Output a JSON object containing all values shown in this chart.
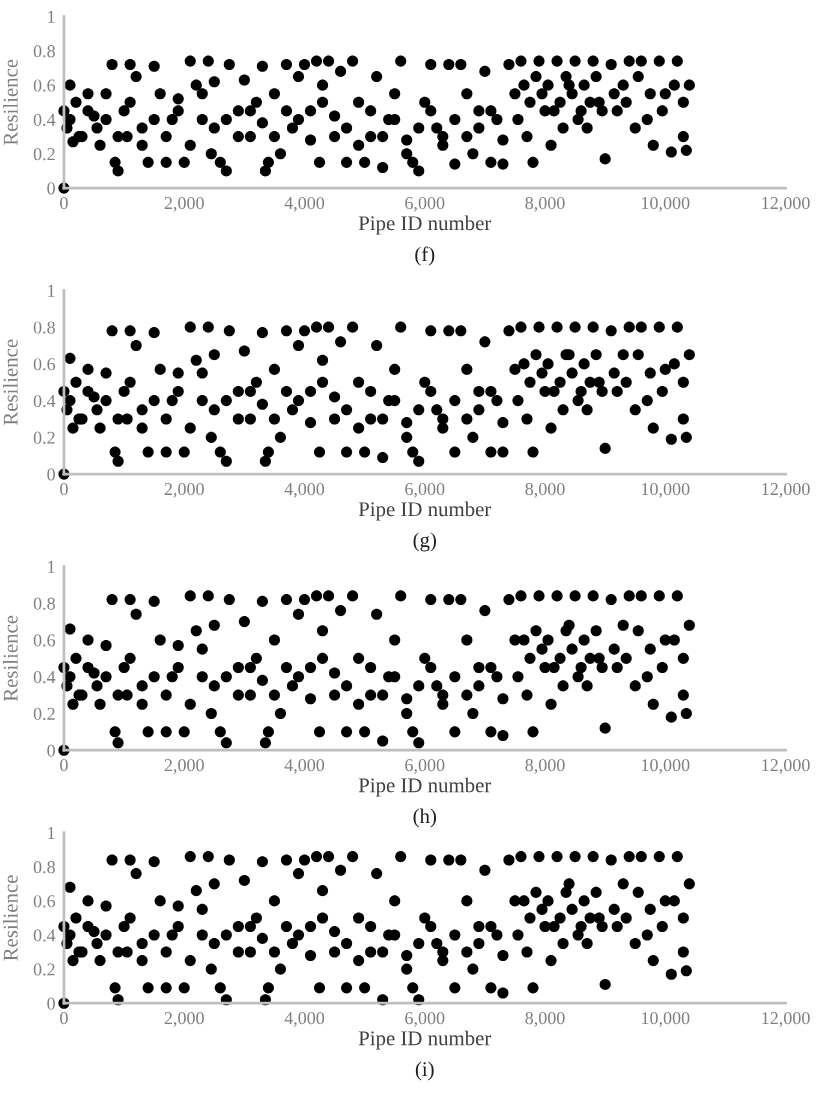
{
  "chart_data": [
    {
      "type": "scatter",
      "title": "(f)",
      "xlabel": "Pipe ID number",
      "ylabel": "Resilience",
      "marker": "circle",
      "grid": false,
      "legend": false,
      "xlim": [
        0,
        12000
      ],
      "xticks": [
        0,
        {
          "value": 2000,
          "label": "2,000"
        },
        {
          "value": 4000,
          "label": "4,000"
        },
        {
          "value": 6000,
          "label": "6,000"
        },
        {
          "value": 8000,
          "label": "8,000"
        },
        {
          "value": 10000,
          "label": "10,000"
        },
        {
          "value": 12000,
          "label": "12,000"
        }
      ],
      "ylim": [
        0,
        1
      ],
      "yticks": [
        0,
        0.2,
        0.4,
        0.6,
        0.8,
        1
      ],
      "series": [
        {
          "color": "#000000",
          "x": [
            0,
            0,
            50,
            100,
            150,
            200,
            300,
            400,
            500,
            600,
            700,
            800,
            850,
            900,
            1000,
            1050,
            1100,
            1200,
            1300,
            1400,
            1500,
            1600,
            1700,
            1800,
            1900,
            2000,
            2100,
            2200,
            2300,
            2400,
            2450,
            2500,
            2600,
            2700,
            2750,
            2900,
            3000,
            3100,
            3200,
            3300,
            3350,
            3400,
            3500,
            3600,
            3700,
            3800,
            3900,
            4000,
            4100,
            4200,
            4250,
            4300,
            4400,
            4500,
            4600,
            4700,
            4800,
            4900,
            5000,
            5100,
            5200,
            5300,
            5400,
            5500,
            5600,
            5700,
            5800,
            5900,
            6000,
            6100,
            6200,
            6300,
            6400,
            6500,
            6600,
            6700,
            6800,
            6900,
            7000,
            7100,
            7200,
            7300,
            7400,
            7500,
            7600,
            7700,
            7800,
            7900,
            8000,
            8100,
            8200,
            8300,
            8400,
            8500,
            8600,
            8700,
            8800,
            8900,
            9000,
            9100,
            9200,
            9300,
            9400,
            9500,
            9600,
            9700,
            9800,
            9900,
            10000,
            10100,
            10200,
            10300,
            10350,
            10400
          ],
          "values": [
            0,
            0.45,
            0.35,
            0.6,
            0.27,
            0.5,
            0.3,
            0.55,
            0.42,
            0.25,
            0.55,
            0.72,
            0.15,
            0.1,
            0.45,
            0.3,
            0.72,
            0.65,
            0.35,
            0.15,
            0.71,
            0.55,
            0.15,
            0.4,
            0.52,
            0.15,
            0.74,
            0.6,
            0.4,
            0.74,
            0.2,
            0.62,
            0.15,
            0.1,
            0.72,
            0.45,
            0.63,
            0.3,
            0.5,
            0.71,
            0.1,
            0.15,
            0.55,
            0.2,
            0.72,
            0.35,
            0.65,
            0.72,
            0.45,
            0.74,
            0.15,
            0.6,
            0.74,
            0.3,
            0.68,
            0.15,
            0.74,
            0.5,
            0.15,
            0.3,
            0.65,
            0.12,
            0.4,
            0.55,
            0.74,
            0.2,
            0.15,
            0.1,
            0.5,
            0.72,
            0.35,
            0.3,
            0.72,
            0.14,
            0.72,
            0.55,
            0.2,
            0.45,
            0.68,
            0.15,
            0.4,
            0.14,
            0.72,
            0.55,
            0.74,
            0.3,
            0.15,
            0.74,
            0.45,
            0.25,
            0.74,
            0.35,
            0.6,
            0.74,
            0.45,
            0.35,
            0.74,
            0.5,
            0.17,
            0.72,
            0.45,
            0.6,
            0.74,
            0.35,
            0.74,
            0.4,
            0.25,
            0.74,
            0.55,
            0.21,
            0.74,
            0.3,
            0.22,
            0.6
          ]
        },
        {
          "color": "#000000",
          "x": [
            100,
            250,
            400,
            550,
            700,
            900,
            1100,
            1300,
            1500,
            1700,
            1900,
            2100,
            2300,
            2500,
            2700,
            2900,
            3100,
            3300,
            3500,
            3700,
            3900,
            4100,
            4300,
            4500,
            4700,
            4900,
            5100,
            5300,
            5500,
            5700,
            5900,
            6100,
            6300,
            6500,
            6700,
            6900,
            7100,
            7300,
            7550,
            7650,
            7750,
            7850,
            7950,
            8050,
            8150,
            8250,
            8350,
            8450,
            8550,
            8650,
            8750,
            8850,
            8950,
            9150,
            9350,
            9550,
            9750,
            9950,
            10150,
            10300
          ],
          "values": [
            0.4,
            0.3,
            0.45,
            0.35,
            0.4,
            0.3,
            0.5,
            0.25,
            0.4,
            0.3,
            0.45,
            0.25,
            0.55,
            0.35,
            0.4,
            0.3,
            0.45,
            0.38,
            0.3,
            0.45,
            0.4,
            0.28,
            0.5,
            0.42,
            0.35,
            0.25,
            0.45,
            0.3,
            0.4,
            0.28,
            0.35,
            0.45,
            0.25,
            0.4,
            0.3,
            0.35,
            0.45,
            0.28,
            0.4,
            0.6,
            0.5,
            0.65,
            0.55,
            0.6,
            0.45,
            0.5,
            0.65,
            0.55,
            0.4,
            0.6,
            0.5,
            0.65,
            0.45,
            0.55,
            0.5,
            0.65,
            0.55,
            0.45,
            0.6,
            0.5
          ]
        }
      ]
    },
    {
      "type": "scatter",
      "title": "(g)",
      "xlabel": "Pipe ID number",
      "ylabel": "Resilience",
      "marker": "circle",
      "grid": false,
      "legend": false,
      "xlim": [
        0,
        12000
      ],
      "xticks": [
        0,
        {
          "value": 2000,
          "label": "2,000"
        },
        {
          "value": 4000,
          "label": "4,000"
        },
        {
          "value": 6000,
          "label": "6,000"
        },
        {
          "value": 8000,
          "label": "8,000"
        },
        {
          "value": 10000,
          "label": "10,000"
        },
        {
          "value": 12000,
          "label": "12,000"
        }
      ],
      "ylim": [
        0,
        1
      ],
      "yticks": [
        0,
        0.2,
        0.4,
        0.6,
        0.8,
        1
      ],
      "series": [
        {
          "color": "#000000",
          "x": [
            0,
            0,
            50,
            100,
            150,
            200,
            300,
            400,
            500,
            600,
            700,
            800,
            850,
            900,
            1000,
            1050,
            1100,
            1200,
            1300,
            1400,
            1500,
            1600,
            1700,
            1800,
            1900,
            2000,
            2100,
            2200,
            2300,
            2400,
            2450,
            2500,
            2600,
            2700,
            2750,
            2900,
            3000,
            3100,
            3200,
            3300,
            3350,
            3400,
            3500,
            3600,
            3700,
            3800,
            3900,
            4000,
            4100,
            4200,
            4250,
            4300,
            4400,
            4500,
            4600,
            4700,
            4800,
            4900,
            5000,
            5100,
            5200,
            5300,
            5400,
            5500,
            5600,
            5700,
            5800,
            5900,
            6000,
            6100,
            6200,
            6300,
            6400,
            6500,
            6600,
            6700,
            6800,
            6900,
            7000,
            7100,
            7200,
            7300,
            7400,
            7500,
            7600,
            7700,
            7800,
            7900,
            8000,
            8100,
            8200,
            8300,
            8400,
            8500,
            8600,
            8700,
            8800,
            8900,
            9000,
            9100,
            9200,
            9300,
            9400,
            9500,
            9600,
            9700,
            9800,
            9900,
            10000,
            10100,
            10200,
            10300,
            10350,
            10400
          ],
          "values": [
            0,
            0.45,
            0.35,
            0.63,
            0.25,
            0.5,
            0.3,
            0.57,
            0.42,
            0.25,
            0.55,
            0.78,
            0.12,
            0.07,
            0.45,
            0.3,
            0.78,
            0.7,
            0.35,
            0.12,
            0.77,
            0.57,
            0.12,
            0.4,
            0.55,
            0.12,
            0.8,
            0.62,
            0.4,
            0.8,
            0.2,
            0.65,
            0.12,
            0.07,
            0.78,
            0.45,
            0.67,
            0.3,
            0.5,
            0.77,
            0.07,
            0.12,
            0.57,
            0.2,
            0.78,
            0.35,
            0.7,
            0.78,
            0.45,
            0.8,
            0.12,
            0.62,
            0.8,
            0.3,
            0.72,
            0.12,
            0.8,
            0.5,
            0.12,
            0.3,
            0.7,
            0.09,
            0.4,
            0.57,
            0.8,
            0.2,
            0.12,
            0.07,
            0.5,
            0.78,
            0.35,
            0.3,
            0.78,
            0.12,
            0.78,
            0.57,
            0.2,
            0.45,
            0.72,
            0.12,
            0.4,
            0.12,
            0.78,
            0.57,
            0.8,
            0.3,
            0.12,
            0.8,
            0.45,
            0.25,
            0.8,
            0.35,
            0.65,
            0.8,
            0.45,
            0.35,
            0.8,
            0.5,
            0.14,
            0.78,
            0.45,
            0.65,
            0.8,
            0.35,
            0.8,
            0.4,
            0.25,
            0.8,
            0.57,
            0.19,
            0.8,
            0.3,
            0.2,
            0.65
          ]
        },
        {
          "color": "#000000",
          "x": [
            100,
            250,
            400,
            550,
            700,
            900,
            1100,
            1300,
            1500,
            1700,
            1900,
            2100,
            2300,
            2500,
            2700,
            2900,
            3100,
            3300,
            3500,
            3700,
            3900,
            4100,
            4300,
            4500,
            4700,
            4900,
            5100,
            5300,
            5500,
            5700,
            5900,
            6100,
            6300,
            6500,
            6700,
            6900,
            7100,
            7300,
            7550,
            7650,
            7750,
            7850,
            7950,
            8050,
            8150,
            8250,
            8350,
            8450,
            8550,
            8650,
            8750,
            8850,
            8950,
            9150,
            9350,
            9550,
            9750,
            9950,
            10150,
            10300
          ],
          "values": [
            0.4,
            0.3,
            0.45,
            0.35,
            0.4,
            0.3,
            0.5,
            0.25,
            0.4,
            0.3,
            0.45,
            0.25,
            0.55,
            0.35,
            0.4,
            0.3,
            0.45,
            0.38,
            0.3,
            0.45,
            0.4,
            0.28,
            0.5,
            0.42,
            0.35,
            0.25,
            0.45,
            0.3,
            0.4,
            0.28,
            0.35,
            0.45,
            0.25,
            0.4,
            0.3,
            0.35,
            0.45,
            0.28,
            0.4,
            0.6,
            0.5,
            0.65,
            0.55,
            0.6,
            0.45,
            0.5,
            0.65,
            0.55,
            0.4,
            0.6,
            0.5,
            0.65,
            0.45,
            0.55,
            0.5,
            0.65,
            0.55,
            0.45,
            0.6,
            0.5
          ]
        }
      ]
    },
    {
      "type": "scatter",
      "title": "(h)",
      "xlabel": "Pipe ID number",
      "ylabel": "Resilience",
      "marker": "circle",
      "grid": false,
      "legend": false,
      "xlim": [
        0,
        12000
      ],
      "xticks": [
        0,
        {
          "value": 2000,
          "label": "2,000"
        },
        {
          "value": 4000,
          "label": "4,000"
        },
        {
          "value": 6000,
          "label": "6,000"
        },
        {
          "value": 8000,
          "label": "8,000"
        },
        {
          "value": 10000,
          "label": "10,000"
        },
        {
          "value": 12000,
          "label": "12,000"
        }
      ],
      "ylim": [
        0,
        1
      ],
      "yticks": [
        0,
        0.2,
        0.4,
        0.6,
        0.8,
        1
      ],
      "series": [
        {
          "color": "#000000",
          "x": [
            0,
            0,
            50,
            100,
            150,
            200,
            300,
            400,
            500,
            600,
            700,
            800,
            850,
            900,
            1000,
            1050,
            1100,
            1200,
            1300,
            1400,
            1500,
            1600,
            1700,
            1800,
            1900,
            2000,
            2100,
            2200,
            2300,
            2400,
            2450,
            2500,
            2600,
            2700,
            2750,
            2900,
            3000,
            3100,
            3200,
            3300,
            3350,
            3400,
            3500,
            3600,
            3700,
            3800,
            3900,
            4000,
            4100,
            4200,
            4250,
            4300,
            4400,
            4500,
            4600,
            4700,
            4800,
            4900,
            5000,
            5100,
            5200,
            5300,
            5400,
            5500,
            5600,
            5700,
            5800,
            5900,
            6000,
            6100,
            6200,
            6300,
            6400,
            6500,
            6600,
            6700,
            6800,
            6900,
            7000,
            7100,
            7200,
            7300,
            7400,
            7500,
            7600,
            7700,
            7800,
            7900,
            8000,
            8100,
            8200,
            8300,
            8400,
            8500,
            8600,
            8700,
            8800,
            8900,
            9000,
            9100,
            9200,
            9300,
            9400,
            9500,
            9600,
            9700,
            9800,
            9900,
            10000,
            10100,
            10200,
            10300,
            10350,
            10400
          ],
          "values": [
            0,
            0.45,
            0.35,
            0.66,
            0.25,
            0.5,
            0.3,
            0.6,
            0.42,
            0.25,
            0.57,
            0.82,
            0.1,
            0.04,
            0.45,
            0.3,
            0.82,
            0.74,
            0.35,
            0.1,
            0.81,
            0.6,
            0.1,
            0.4,
            0.57,
            0.1,
            0.84,
            0.65,
            0.4,
            0.84,
            0.2,
            0.68,
            0.1,
            0.04,
            0.82,
            0.45,
            0.7,
            0.3,
            0.5,
            0.81,
            0.04,
            0.1,
            0.6,
            0.2,
            0.82,
            0.35,
            0.74,
            0.82,
            0.45,
            0.84,
            0.1,
            0.65,
            0.84,
            0.3,
            0.76,
            0.1,
            0.84,
            0.5,
            0.1,
            0.3,
            0.74,
            0.05,
            0.4,
            0.6,
            0.84,
            0.2,
            0.1,
            0.04,
            0.5,
            0.82,
            0.35,
            0.3,
            0.82,
            0.1,
            0.82,
            0.6,
            0.2,
            0.45,
            0.76,
            0.1,
            0.4,
            0.08,
            0.82,
            0.6,
            0.84,
            0.3,
            0.1,
            0.84,
            0.45,
            0.25,
            0.84,
            0.35,
            0.68,
            0.84,
            0.45,
            0.35,
            0.84,
            0.5,
            0.12,
            0.82,
            0.45,
            0.68,
            0.84,
            0.35,
            0.84,
            0.4,
            0.25,
            0.84,
            0.6,
            0.18,
            0.84,
            0.3,
            0.2,
            0.68
          ]
        },
        {
          "color": "#000000",
          "x": [
            100,
            250,
            400,
            550,
            700,
            900,
            1100,
            1300,
            1500,
            1700,
            1900,
            2100,
            2300,
            2500,
            2700,
            2900,
            3100,
            3300,
            3500,
            3700,
            3900,
            4100,
            4300,
            4500,
            4700,
            4900,
            5100,
            5300,
            5500,
            5700,
            5900,
            6100,
            6300,
            6500,
            6700,
            6900,
            7100,
            7300,
            7550,
            7650,
            7750,
            7850,
            7950,
            8050,
            8150,
            8250,
            8350,
            8450,
            8550,
            8650,
            8750,
            8850,
            8950,
            9150,
            9350,
            9550,
            9750,
            9950,
            10150,
            10300
          ],
          "values": [
            0.4,
            0.3,
            0.45,
            0.35,
            0.4,
            0.3,
            0.5,
            0.25,
            0.4,
            0.3,
            0.45,
            0.25,
            0.55,
            0.35,
            0.4,
            0.3,
            0.45,
            0.38,
            0.3,
            0.45,
            0.4,
            0.28,
            0.5,
            0.42,
            0.35,
            0.25,
            0.45,
            0.3,
            0.4,
            0.28,
            0.35,
            0.45,
            0.25,
            0.4,
            0.3,
            0.35,
            0.45,
            0.28,
            0.4,
            0.6,
            0.5,
            0.65,
            0.55,
            0.6,
            0.45,
            0.5,
            0.65,
            0.55,
            0.4,
            0.6,
            0.5,
            0.65,
            0.45,
            0.55,
            0.5,
            0.65,
            0.55,
            0.45,
            0.6,
            0.5
          ]
        }
      ]
    },
    {
      "type": "scatter",
      "title": "(i)",
      "xlabel": "Pipe ID number",
      "ylabel": "Resilience",
      "marker": "circle",
      "grid": false,
      "legend": false,
      "xlim": [
        0,
        12000
      ],
      "xticks": [
        0,
        {
          "value": 2000,
          "label": "2,000"
        },
        {
          "value": 4000,
          "label": "4,000"
        },
        {
          "value": 6000,
          "label": "6,000"
        },
        {
          "value": 8000,
          "label": "8,000"
        },
        {
          "value": 10000,
          "label": "10,000"
        },
        {
          "value": 12000,
          "label": "12,000"
        }
      ],
      "ylim": [
        0,
        1
      ],
      "yticks": [
        0,
        0.2,
        0.4,
        0.6,
        0.8,
        1
      ],
      "series": [
        {
          "color": "#000000",
          "x": [
            0,
            0,
            50,
            100,
            150,
            200,
            300,
            400,
            500,
            600,
            700,
            800,
            850,
            900,
            1000,
            1050,
            1100,
            1200,
            1300,
            1400,
            1500,
            1600,
            1700,
            1800,
            1900,
            2000,
            2100,
            2200,
            2300,
            2400,
            2450,
            2500,
            2600,
            2700,
            2750,
            2900,
            3000,
            3100,
            3200,
            3300,
            3350,
            3400,
            3500,
            3600,
            3700,
            3800,
            3900,
            4000,
            4100,
            4200,
            4250,
            4300,
            4400,
            4500,
            4600,
            4700,
            4800,
            4900,
            5000,
            5100,
            5200,
            5300,
            5400,
            5500,
            5600,
            5700,
            5800,
            5900,
            6000,
            6100,
            6200,
            6300,
            6400,
            6500,
            6600,
            6700,
            6800,
            6900,
            7000,
            7100,
            7200,
            7300,
            7400,
            7500,
            7600,
            7700,
            7800,
            7900,
            8000,
            8100,
            8200,
            8300,
            8400,
            8500,
            8600,
            8700,
            8800,
            8900,
            9000,
            9100,
            9200,
            9300,
            9400,
            9500,
            9600,
            9700,
            9800,
            9900,
            10000,
            10100,
            10200,
            10300,
            10350,
            10400
          ],
          "values": [
            0,
            0.45,
            0.35,
            0.68,
            0.25,
            0.5,
            0.3,
            0.6,
            0.42,
            0.25,
            0.57,
            0.84,
            0.09,
            0.02,
            0.45,
            0.3,
            0.84,
            0.76,
            0.35,
            0.09,
            0.83,
            0.6,
            0.09,
            0.4,
            0.57,
            0.09,
            0.86,
            0.66,
            0.4,
            0.86,
            0.2,
            0.7,
            0.09,
            0.02,
            0.84,
            0.45,
            0.72,
            0.3,
            0.5,
            0.83,
            0.02,
            0.09,
            0.6,
            0.2,
            0.84,
            0.35,
            0.76,
            0.84,
            0.45,
            0.86,
            0.09,
            0.66,
            0.86,
            0.3,
            0.78,
            0.09,
            0.86,
            0.5,
            0.09,
            0.3,
            0.76,
            0.02,
            0.4,
            0.6,
            0.86,
            0.2,
            0.09,
            0.02,
            0.5,
            0.84,
            0.35,
            0.3,
            0.84,
            0.09,
            0.84,
            0.6,
            0.2,
            0.45,
            0.78,
            0.09,
            0.4,
            0.06,
            0.84,
            0.6,
            0.86,
            0.3,
            0.09,
            0.86,
            0.45,
            0.25,
            0.86,
            0.35,
            0.7,
            0.86,
            0.45,
            0.35,
            0.86,
            0.5,
            0.11,
            0.84,
            0.45,
            0.7,
            0.86,
            0.35,
            0.86,
            0.4,
            0.25,
            0.86,
            0.6,
            0.17,
            0.86,
            0.3,
            0.19,
            0.7
          ]
        },
        {
          "color": "#000000",
          "x": [
            100,
            250,
            400,
            550,
            700,
            900,
            1100,
            1300,
            1500,
            1700,
            1900,
            2100,
            2300,
            2500,
            2700,
            2900,
            3100,
            3300,
            3500,
            3700,
            3900,
            4100,
            4300,
            4500,
            4700,
            4900,
            5100,
            5300,
            5500,
            5700,
            5900,
            6100,
            6300,
            6500,
            6700,
            6900,
            7100,
            7300,
            7550,
            7650,
            7750,
            7850,
            7950,
            8050,
            8150,
            8250,
            8350,
            8450,
            8550,
            8650,
            8750,
            8850,
            8950,
            9150,
            9350,
            9550,
            9750,
            9950,
            10150,
            10300
          ],
          "values": [
            0.4,
            0.3,
            0.45,
            0.35,
            0.4,
            0.3,
            0.5,
            0.25,
            0.4,
            0.3,
            0.45,
            0.25,
            0.55,
            0.35,
            0.4,
            0.3,
            0.45,
            0.38,
            0.3,
            0.45,
            0.4,
            0.28,
            0.5,
            0.42,
            0.35,
            0.25,
            0.45,
            0.3,
            0.4,
            0.28,
            0.35,
            0.45,
            0.25,
            0.4,
            0.3,
            0.35,
            0.45,
            0.28,
            0.4,
            0.6,
            0.5,
            0.65,
            0.55,
            0.6,
            0.45,
            0.5,
            0.65,
            0.55,
            0.4,
            0.6,
            0.5,
            0.65,
            0.45,
            0.55,
            0.5,
            0.65,
            0.55,
            0.45,
            0.6,
            0.5
          ]
        }
      ]
    }
  ]
}
